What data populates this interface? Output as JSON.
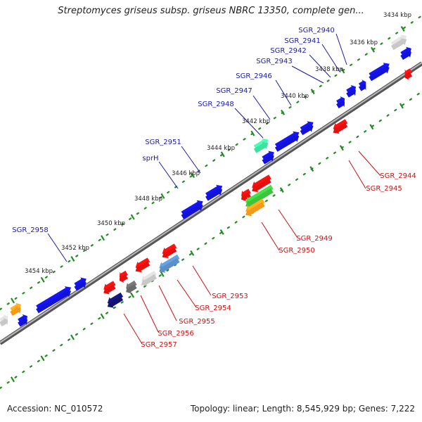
{
  "title": "Streptomyces griseus subsp. griseus NBRC 13350, complete gen...",
  "footer": {
    "accession": "Accession: NC_010572",
    "summary": "Topology: linear; Length: 8,545,929 bp; Genes: 7,222"
  },
  "colors": {
    "backbone": "#7a7a7a",
    "ruler": "#228b22",
    "top_label": "#1a1aa8",
    "bottom_label": "#cc1111",
    "top_gene": "#1212d8",
    "bottom_gene": "#e50f0f"
  },
  "ruler_labels": [
    "3434 kbp",
    "3436 kbp",
    "3438 kbp",
    "3440 kbp",
    "3442 kbp",
    "3444 kbp",
    "3446 kbp",
    "3448 kbp",
    "3450 kbp",
    "3452 kbp",
    "3454 kbp"
  ],
  "top_labels": [
    "SGR_2940",
    "SGR_2941",
    "SGR_2942",
    "SGR_2943",
    "SGR_2946",
    "SGR_2947",
    "SGR_2948",
    "SGR_2951",
    "sprH",
    "SGR_2958"
  ],
  "bottom_labels": [
    "SGR_2944",
    "SGR_2945",
    "SGR_2949",
    "SGR_2950",
    "SGR_2953",
    "SGR_2954",
    "SGR_2955",
    "SGR_2956",
    "SGR_2957"
  ],
  "gene_colors": {
    "gray": "#c8c8c8",
    "orange": "#f39a1a",
    "teal": "#3fe0a0",
    "green": "#3cc43c",
    "steel_blue": "#5a8fc8",
    "navy": "#141470",
    "dark_gray": "#6a6a6a"
  }
}
